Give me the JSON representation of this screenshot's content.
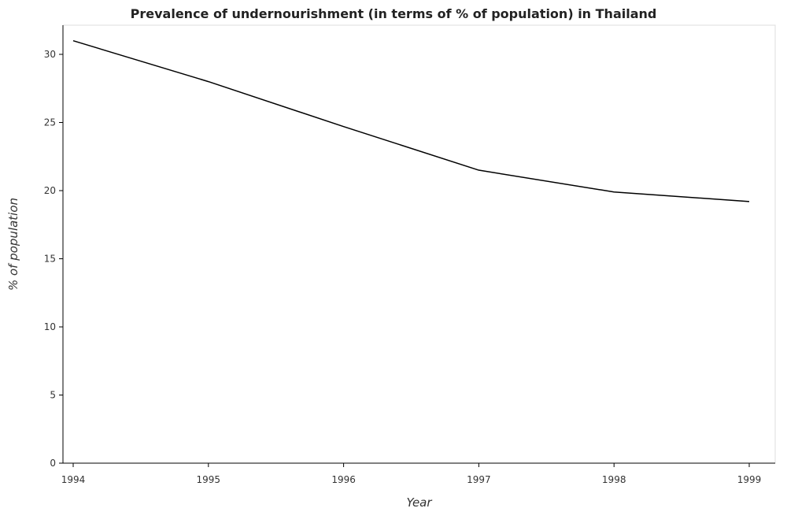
{
  "chart_data": {
    "type": "line",
    "title": "Prevalence of undernourishment (in terms of % of population) in Thailand",
    "xlabel": "Year",
    "ylabel": "% of population",
    "categories": [
      "1994",
      "1995",
      "1996",
      "1997",
      "1998",
      "1999"
    ],
    "series": [
      {
        "values": [
          31.0,
          28.0,
          24.7,
          21.5,
          19.9,
          19.2
        ]
      }
    ],
    "ylim": [
      0,
      32
    ],
    "yticks": [
      0,
      5,
      10,
      15,
      20,
      25,
      30
    ],
    "grid": false,
    "line_color": "#000000"
  }
}
